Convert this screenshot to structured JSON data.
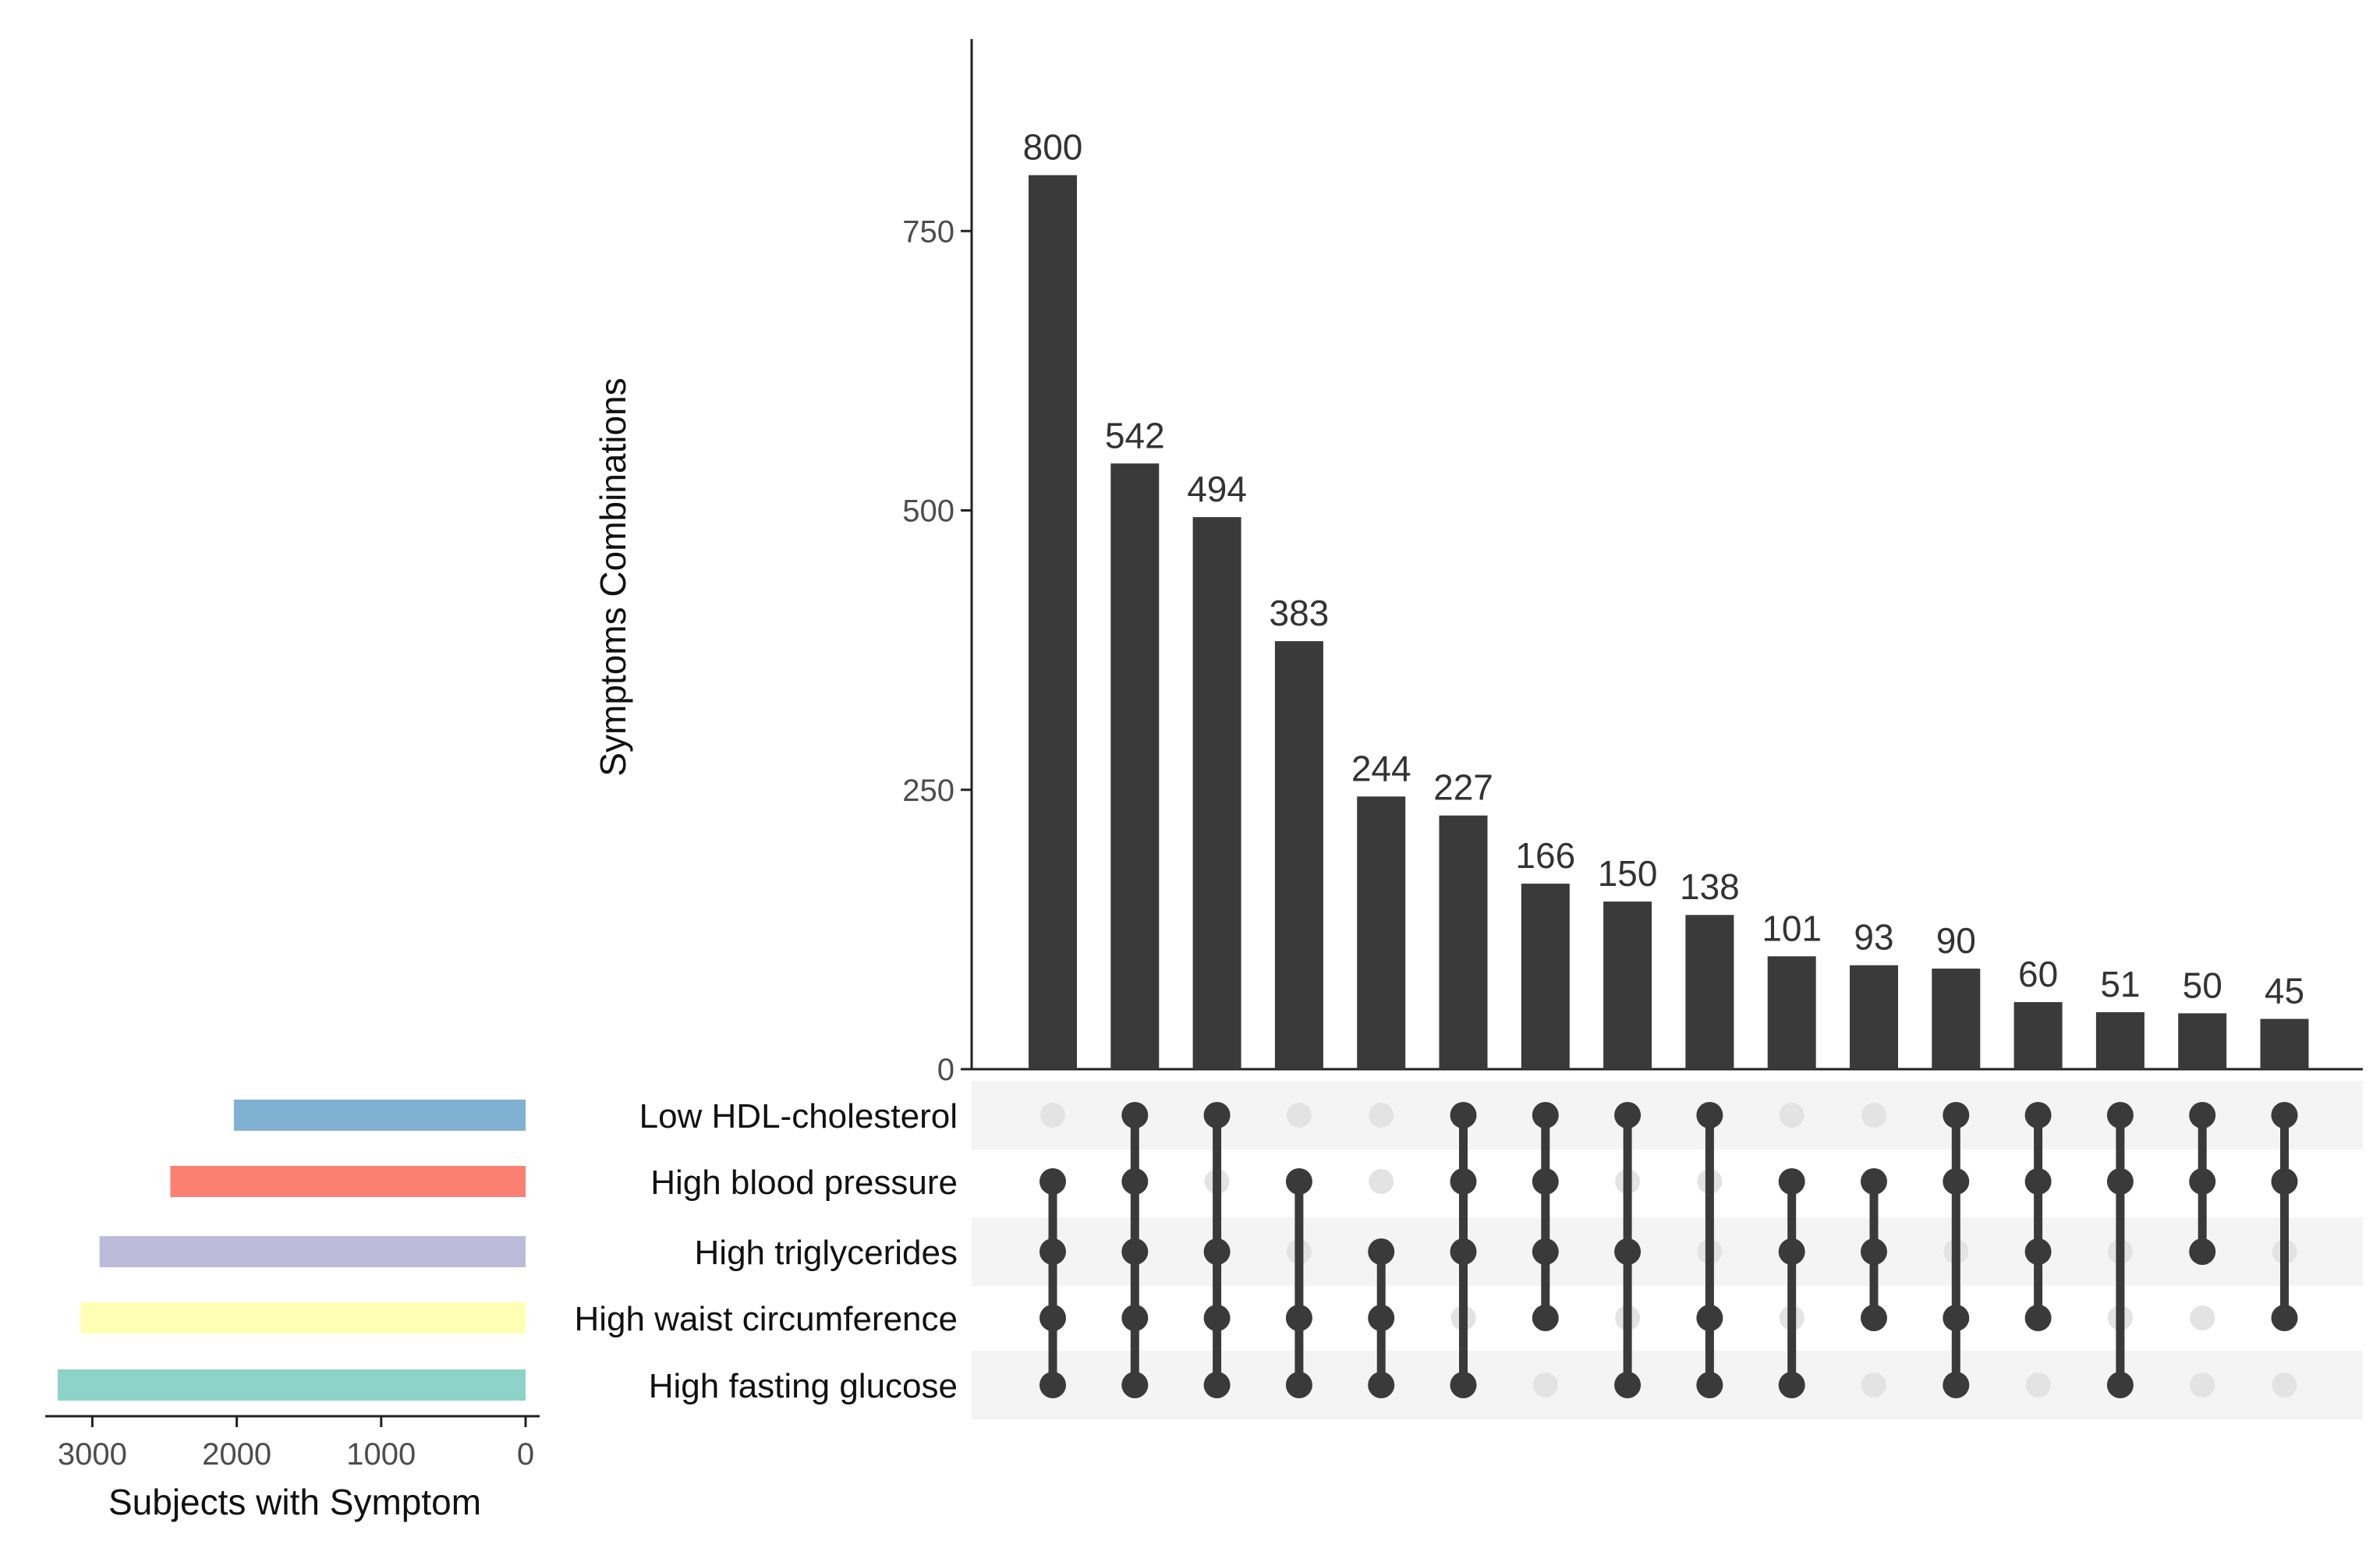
{
  "chart_data": {
    "type": "bar",
    "subtype": "upset",
    "ylabel": "Symptoms Combinations",
    "ylim": [
      0,
      920
    ],
    "yticks": [
      0,
      250,
      500,
      750
    ],
    "bar_color": "#3a3a3a",
    "sets": [
      "Low HDL-cholesterol",
      "High blood pressure",
      "High triglycerides",
      "High waist circumference",
      "High fasting glucose"
    ],
    "intersections": [
      {
        "value": 800,
        "members": [
          1,
          2,
          3,
          4
        ]
      },
      {
        "value": 542,
        "members": [
          0,
          1,
          2,
          3,
          4
        ]
      },
      {
        "value": 494,
        "members": [
          0,
          2,
          3,
          4
        ]
      },
      {
        "value": 383,
        "members": [
          1,
          3,
          4
        ]
      },
      {
        "value": 244,
        "members": [
          2,
          3,
          4
        ]
      },
      {
        "value": 227,
        "members": [
          0,
          1,
          2,
          4
        ]
      },
      {
        "value": 166,
        "members": [
          0,
          1,
          2,
          3
        ]
      },
      {
        "value": 150,
        "members": [
          0,
          2,
          4
        ]
      },
      {
        "value": 138,
        "members": [
          0,
          3,
          4
        ]
      },
      {
        "value": 101,
        "members": [
          1,
          2,
          4
        ]
      },
      {
        "value": 93,
        "members": [
          1,
          2,
          3
        ]
      },
      {
        "value": 90,
        "members": [
          0,
          1,
          3,
          4
        ]
      },
      {
        "value": 60,
        "members": [
          0,
          1,
          2,
          3
        ]
      },
      {
        "value": 51,
        "members": [
          0,
          1,
          4
        ]
      },
      {
        "value": 50,
        "members": [
          0,
          1,
          2
        ]
      },
      {
        "value": 45,
        "members": [
          0,
          1,
          3
        ]
      }
    ],
    "set_sizes": {
      "xlabel": "Subjects with Symptom",
      "xlim": [
        3250,
        0
      ],
      "xticks": [
        3000,
        2000,
        1000,
        0
      ],
      "bars": [
        {
          "set": "Low HDL-cholesterol",
          "value": 2020,
          "color": "#80b1d3"
        },
        {
          "set": "High blood pressure",
          "value": 2460,
          "color": "#fb8072"
        },
        {
          "set": "High triglycerides",
          "value": 2950,
          "color": "#bebada"
        },
        {
          "set": "High waist circumference",
          "value": 3080,
          "color": "#ffffb3"
        },
        {
          "set": "High fasting glucose",
          "value": 3240,
          "color": "#8dd3c7"
        }
      ]
    },
    "dot_active_color": "#3a3a3a",
    "dot_inactive_color": "#e3e3e3",
    "grid": false
  }
}
